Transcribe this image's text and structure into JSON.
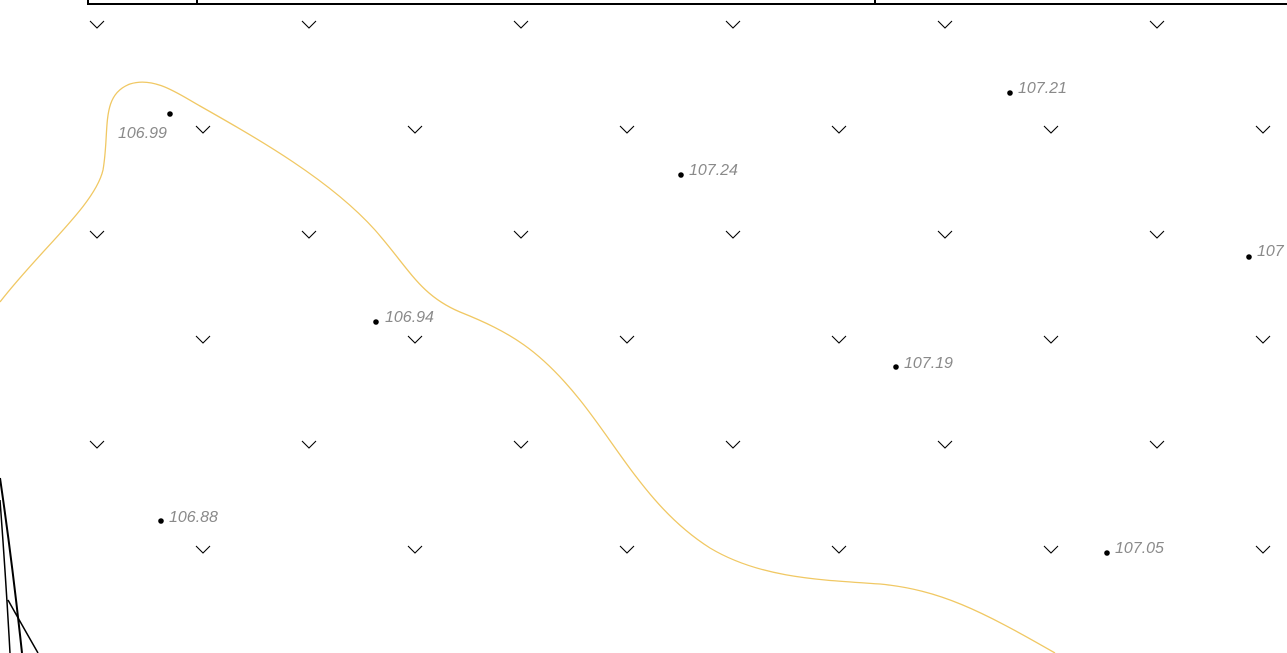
{
  "spot_heights": [
    {
      "label": "106.99"
    },
    {
      "label": "107.24"
    },
    {
      "label": "107.21"
    },
    {
      "label": "107"
    },
    {
      "label": "106.94"
    },
    {
      "label": "107.19"
    },
    {
      "label": "106.88"
    },
    {
      "label": "107.05"
    }
  ]
}
